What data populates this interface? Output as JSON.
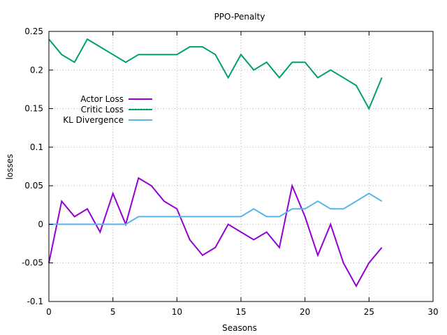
{
  "chart_data": {
    "type": "line",
    "title": "PPO-Penalty",
    "xlabel": "Seasons",
    "ylabel": "losses",
    "xlim": [
      0,
      30
    ],
    "ylim": [
      -0.1,
      0.25
    ],
    "xticks": [
      "0",
      "5",
      "10",
      "15",
      "20",
      "25",
      "30"
    ],
    "yticks": [
      "-0.1",
      "-0.05",
      "0",
      "0.05",
      "0.1",
      "0.15",
      "0.2",
      "0.25"
    ],
    "grid": true,
    "legend_position": "left",
    "x": [
      0,
      1,
      2,
      3,
      4,
      5,
      6,
      7,
      8,
      9,
      10,
      11,
      12,
      13,
      14,
      15,
      16,
      17,
      18,
      19,
      20,
      21,
      22,
      23,
      24,
      25,
      26
    ],
    "series": [
      {
        "name": "Actor Loss",
        "color": "#9400d3",
        "values": [
          -0.05,
          0.03,
          0.01,
          0.02,
          -0.01,
          0.04,
          0.0,
          0.06,
          0.05,
          0.03,
          0.02,
          -0.02,
          -0.04,
          -0.03,
          0.0,
          -0.01,
          -0.02,
          -0.01,
          -0.03,
          0.05,
          0.01,
          -0.04,
          0.0,
          -0.05,
          -0.08,
          -0.05,
          -0.03
        ]
      },
      {
        "name": "Critic Loss",
        "color": "#009e73",
        "values": [
          0.24,
          0.22,
          0.21,
          0.24,
          0.23,
          0.22,
          0.21,
          0.22,
          0.22,
          0.22,
          0.22,
          0.23,
          0.23,
          0.22,
          0.19,
          0.22,
          0.2,
          0.21,
          0.19,
          0.21,
          0.21,
          0.19,
          0.2,
          0.19,
          0.18,
          0.15,
          0.19
        ]
      },
      {
        "name": "KL Divergence",
        "color": "#56b4e9",
        "values": [
          0.0,
          0.0,
          0.0,
          0.0,
          0.0,
          0.0,
          0.0,
          0.01,
          0.01,
          0.01,
          0.01,
          0.01,
          0.01,
          0.01,
          0.01,
          0.01,
          0.02,
          0.01,
          0.01,
          0.02,
          0.02,
          0.03,
          0.02,
          0.02,
          0.03,
          0.04,
          0.03
        ]
      }
    ]
  }
}
